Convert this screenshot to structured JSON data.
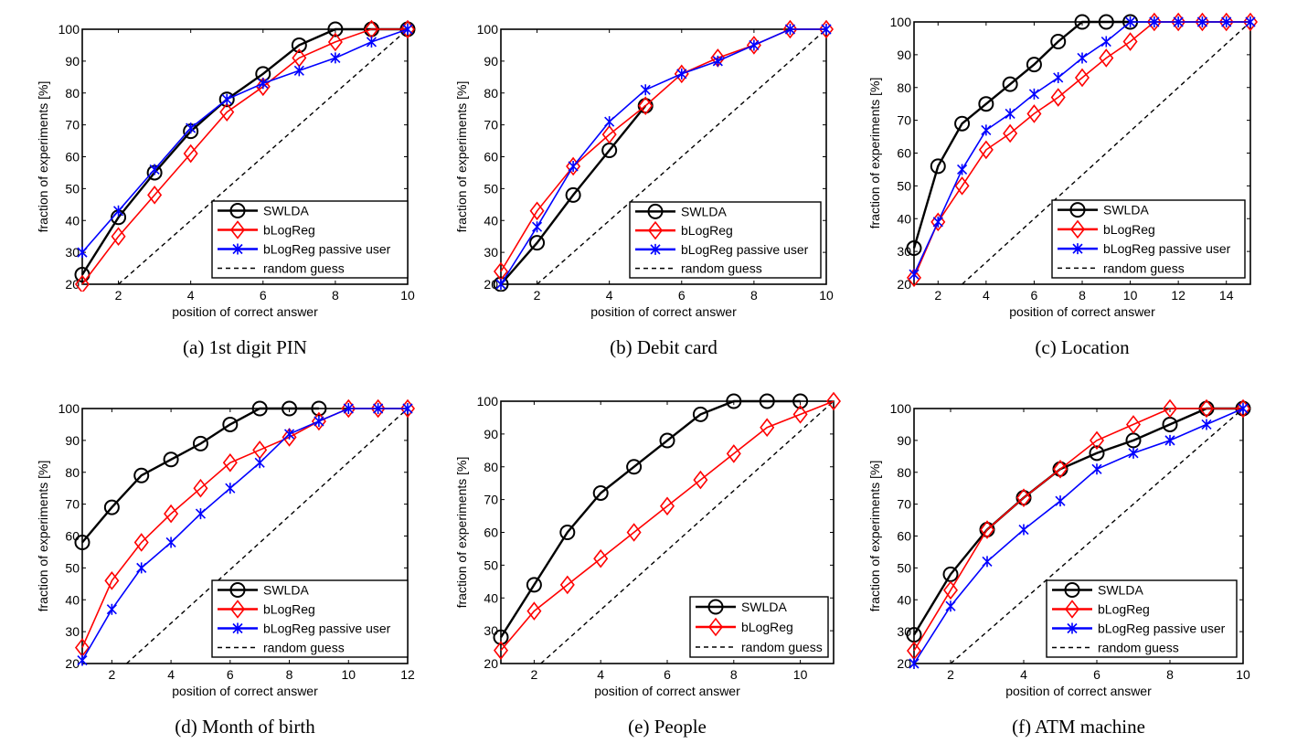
{
  "chart_data": [
    {
      "id": "a",
      "type": "line",
      "caption": "(a) 1st digit PIN",
      "xlabel": "position of correct answer",
      "ylabel": "fraction of experiments [%]",
      "xlim": [
        1,
        10
      ],
      "ylim": [
        20,
        100
      ],
      "xticks": [
        2,
        4,
        6,
        8,
        10
      ],
      "yticks": [
        20,
        30,
        40,
        50,
        60,
        70,
        80,
        90,
        100
      ],
      "legend_position": "bottom-right",
      "series": [
        {
          "name": "SWLDA",
          "color": "#000000",
          "marker": "circle",
          "style": "solid",
          "x": [
            1,
            2,
            3,
            4,
            5,
            6,
            7,
            8,
            9,
            10
          ],
          "values": [
            23,
            41,
            55,
            68,
            78,
            86,
            95,
            100,
            100,
            100
          ]
        },
        {
          "name": "bLogReg",
          "color": "#ff0000",
          "marker": "diamond",
          "style": "solid",
          "x": [
            1,
            2,
            3,
            4,
            5,
            6,
            7,
            8,
            9,
            10
          ],
          "values": [
            20,
            35,
            48,
            61,
            74,
            82,
            91,
            96,
            100,
            100
          ]
        },
        {
          "name": "bLogReg passive user",
          "color": "#0000ff",
          "marker": "x",
          "style": "solid",
          "x": [
            1,
            2,
            3,
            4,
            5,
            6,
            7,
            8,
            9,
            10
          ],
          "values": [
            30,
            43,
            56,
            69,
            78,
            83,
            87,
            91,
            96,
            100
          ]
        },
        {
          "name": "random guess",
          "color": "#000000",
          "marker": "none",
          "style": "dashed",
          "x": [
            2,
            10
          ],
          "values": [
            20,
            100
          ]
        }
      ]
    },
    {
      "id": "b",
      "type": "line",
      "caption": "(b) Debit card",
      "xlabel": "position of correct answer",
      "ylabel": "fraction of experiments [%]",
      "xlim": [
        1,
        10
      ],
      "ylim": [
        20,
        100
      ],
      "xticks": [
        2,
        4,
        6,
        8,
        10
      ],
      "yticks": [
        20,
        30,
        40,
        50,
        60,
        70,
        80,
        90,
        100
      ],
      "legend_position": "bottom-right",
      "series": [
        {
          "name": "SWLDA",
          "color": "#000000",
          "marker": "circle",
          "style": "solid",
          "x": [
            1,
            2,
            3,
            4,
            5
          ],
          "values": [
            20,
            33,
            48,
            62,
            76
          ]
        },
        {
          "name": "bLogReg",
          "color": "#ff0000",
          "marker": "diamond",
          "style": "solid",
          "x": [
            1,
            2,
            3,
            4,
            5,
            6,
            7,
            8,
            9,
            10
          ],
          "values": [
            24,
            43,
            57,
            67,
            76,
            86,
            91,
            95,
            100,
            100
          ]
        },
        {
          "name": "bLogReg passive user",
          "color": "#0000ff",
          "marker": "x",
          "style": "solid",
          "x": [
            1,
            2,
            3,
            4,
            5,
            6,
            7,
            8,
            9,
            10
          ],
          "values": [
            20,
            38,
            57,
            71,
            81,
            86,
            90,
            95,
            100,
            100
          ]
        },
        {
          "name": "random guess",
          "color": "#000000",
          "marker": "none",
          "style": "dashed",
          "x": [
            2,
            10
          ],
          "values": [
            20,
            100
          ]
        }
      ]
    },
    {
      "id": "c",
      "type": "line",
      "caption": "(c) Location",
      "xlabel": "position of correct answer",
      "ylabel": "fraction of experiments [%]",
      "xlim": [
        1,
        15
      ],
      "ylim": [
        20,
        100
      ],
      "xticks": [
        2,
        4,
        6,
        8,
        10,
        12,
        14
      ],
      "yticks": [
        20,
        30,
        40,
        50,
        60,
        70,
        80,
        90,
        100
      ],
      "legend_position": "bottom-right",
      "series": [
        {
          "name": "SWLDA",
          "color": "#000000",
          "marker": "circle",
          "style": "solid",
          "x": [
            1,
            2,
            3,
            4,
            5,
            6,
            7,
            8,
            9,
            10
          ],
          "values": [
            31,
            56,
            69,
            75,
            81,
            87,
            94,
            100,
            100,
            100
          ]
        },
        {
          "name": "bLogReg",
          "color": "#ff0000",
          "marker": "diamond",
          "style": "solid",
          "x": [
            1,
            2,
            3,
            4,
            5,
            6,
            7,
            8,
            9,
            10,
            11,
            12,
            13,
            14,
            15
          ],
          "values": [
            22,
            39,
            50,
            61,
            66,
            72,
            77,
            83,
            89,
            94,
            100,
            100,
            100,
            100,
            100
          ]
        },
        {
          "name": "bLogReg passive user",
          "color": "#0000ff",
          "marker": "x",
          "style": "solid",
          "x": [
            1,
            2,
            3,
            4,
            5,
            6,
            7,
            8,
            9,
            10,
            11,
            12,
            13,
            14,
            15
          ],
          "values": [
            23,
            39,
            55,
            67,
            72,
            78,
            83,
            89,
            94,
            100,
            100,
            100,
            100,
            100,
            100
          ]
        },
        {
          "name": "random guess",
          "color": "#000000",
          "marker": "none",
          "style": "dashed",
          "x": [
            3,
            15
          ],
          "values": [
            20,
            100
          ]
        }
      ]
    },
    {
      "id": "d",
      "type": "line",
      "caption": "(d) Month of birth",
      "xlabel": "position of correct answer",
      "ylabel": "fraction of experiments [%]",
      "xlim": [
        1,
        12
      ],
      "ylim": [
        20,
        100
      ],
      "xticks": [
        2,
        4,
        6,
        8,
        10,
        12
      ],
      "yticks": [
        20,
        30,
        40,
        50,
        60,
        70,
        80,
        90,
        100
      ],
      "legend_position": "bottom-right",
      "series": [
        {
          "name": "SWLDA",
          "color": "#000000",
          "marker": "circle",
          "style": "solid",
          "x": [
            1,
            2,
            3,
            4,
            5,
            6,
            7,
            8,
            9
          ],
          "values": [
            58,
            69,
            79,
            84,
            89,
            95,
            100,
            100,
            100
          ]
        },
        {
          "name": "bLogReg",
          "color": "#ff0000",
          "marker": "diamond",
          "style": "solid",
          "x": [
            1,
            2,
            3,
            4,
            5,
            6,
            7,
            8,
            9,
            10,
            11,
            12
          ],
          "values": [
            25,
            46,
            58,
            67,
            75,
            83,
            87,
            91,
            96,
            100,
            100,
            100
          ]
        },
        {
          "name": "bLogReg passive user",
          "color": "#0000ff",
          "marker": "x",
          "style": "solid",
          "x": [
            1,
            2,
            3,
            4,
            5,
            6,
            7,
            8,
            9,
            10,
            11,
            12
          ],
          "values": [
            21,
            37,
            50,
            58,
            67,
            75,
            83,
            92,
            96,
            100,
            100,
            100
          ]
        },
        {
          "name": "random guess",
          "color": "#000000",
          "marker": "none",
          "style": "dashed",
          "x": [
            2.5,
            12
          ],
          "values": [
            20,
            100
          ]
        }
      ]
    },
    {
      "id": "e",
      "type": "line",
      "caption": "(e) People",
      "xlabel": "position of correct answer",
      "ylabel": "fraction of experiments [%]",
      "xlim": [
        1,
        11
      ],
      "ylim": [
        20,
        100
      ],
      "xticks": [
        2,
        4,
        6,
        8,
        10
      ],
      "yticks": [
        20,
        30,
        40,
        50,
        60,
        70,
        80,
        90,
        100
      ],
      "legend_position": "bottom-right",
      "series": [
        {
          "name": "SWLDA",
          "color": "#000000",
          "marker": "circle",
          "style": "solid",
          "x": [
            1,
            2,
            3,
            4,
            5,
            6,
            7,
            8,
            9,
            10
          ],
          "values": [
            28,
            44,
            60,
            72,
            80,
            88,
            96,
            100,
            100,
            100
          ]
        },
        {
          "name": "bLogReg",
          "color": "#ff0000",
          "marker": "diamond",
          "style": "solid",
          "x": [
            1,
            2,
            3,
            4,
            5,
            6,
            7,
            8,
            9,
            10,
            11
          ],
          "values": [
            24,
            36,
            44,
            52,
            60,
            68,
            76,
            84,
            92,
            96,
            100
          ]
        },
        {
          "name": "random guess",
          "color": "#000000",
          "marker": "none",
          "style": "dashed",
          "x": [
            2.2,
            11
          ],
          "values": [
            20,
            100
          ]
        }
      ]
    },
    {
      "id": "f",
      "type": "line",
      "caption": "(f) ATM machine",
      "xlabel": "position of correct answer",
      "ylabel": "fraction of experiments [%]",
      "xlim": [
        1,
        10
      ],
      "ylim": [
        20,
        100
      ],
      "xticks": [
        2,
        4,
        6,
        8,
        10
      ],
      "yticks": [
        20,
        30,
        40,
        50,
        60,
        70,
        80,
        90,
        100
      ],
      "legend_position": "bottom-right",
      "series": [
        {
          "name": "SWLDA",
          "color": "#000000",
          "marker": "circle",
          "style": "solid",
          "x": [
            1,
            2,
            3,
            4,
            5,
            6,
            7,
            8,
            9,
            10
          ],
          "values": [
            29,
            48,
            62,
            72,
            81,
            86,
            90,
            95,
            100,
            100
          ]
        },
        {
          "name": "bLogReg",
          "color": "#ff0000",
          "marker": "diamond",
          "style": "solid",
          "x": [
            1,
            2,
            3,
            4,
            5,
            6,
            7,
            8,
            9,
            10
          ],
          "values": [
            24,
            43,
            62,
            72,
            81,
            90,
            95,
            100,
            100,
            100
          ]
        },
        {
          "name": "bLogReg passive user",
          "color": "#0000ff",
          "marker": "x",
          "style": "solid",
          "x": [
            1,
            2,
            3,
            4,
            5,
            6,
            7,
            8,
            9,
            10
          ],
          "values": [
            20,
            38,
            52,
            62,
            71,
            81,
            86,
            90,
            95,
            100
          ]
        },
        {
          "name": "random guess",
          "color": "#000000",
          "marker": "none",
          "style": "dashed",
          "x": [
            2,
            10
          ],
          "values": [
            20,
            100
          ]
        }
      ]
    }
  ]
}
